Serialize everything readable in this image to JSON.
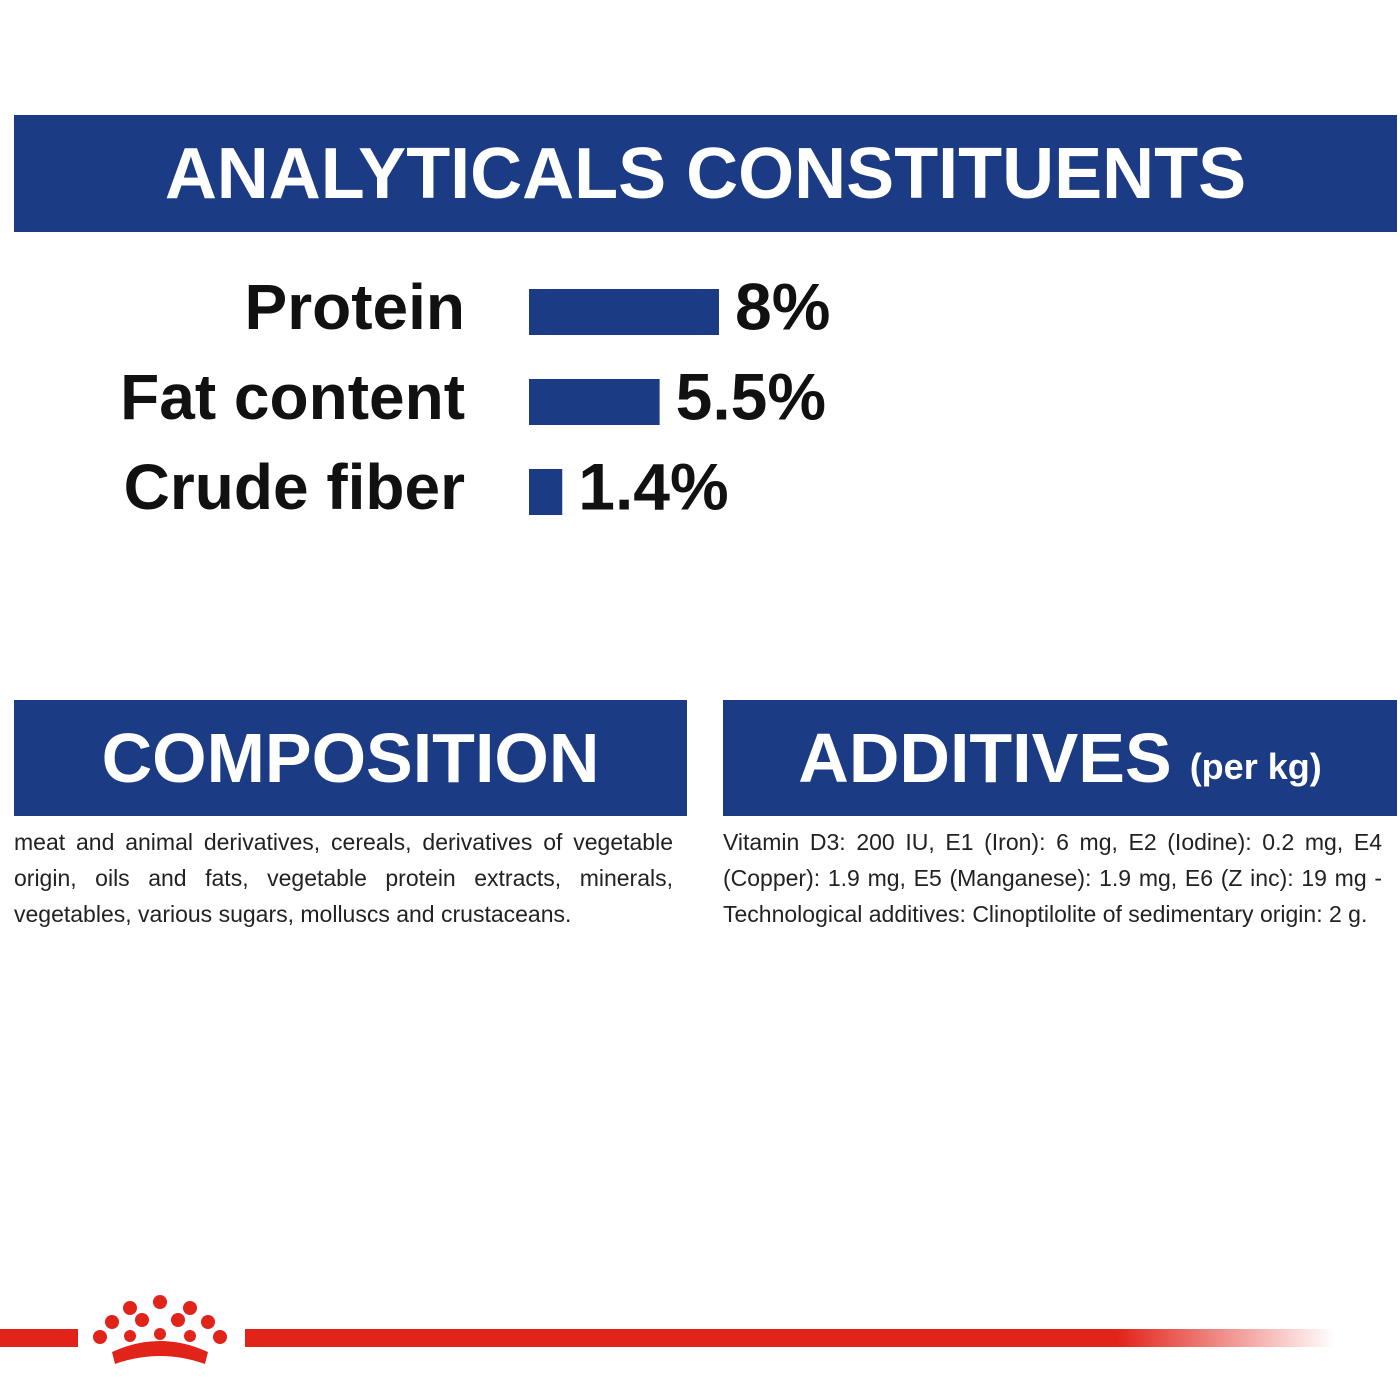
{
  "chart_data": {
    "type": "bar",
    "title": "ANALYTICALS CONSTITUENTS",
    "categories": [
      "Protein",
      "Fat content",
      "Crude fiber"
    ],
    "values": [
      8,
      5.5,
      1.4
    ],
    "value_labels": [
      "8%",
      "5.5%",
      "1.4%"
    ],
    "color": "#1b3c84"
  },
  "composition": {
    "title": "COMPOSITION",
    "text": "meat and animal derivatives, cereals, derivatives of vegetable origin, oils and fats, vegetable protein extracts, minerals, vegetables, various sugars, molluscs and crustaceans."
  },
  "additives": {
    "title": "ADDITIVES",
    "unit": "(per kg)",
    "text": "Vitamin D3: 200 IU, E1 (Iron): 6 mg, E2 (Iodine): 0.2 mg, E4 (Copper): 1.9 mg, E5 (Manganese): 1.9 mg, E6 (Z inc): 19 mg - Technological additives: Clinoptilolite of sedimentary origin: 2 g."
  }
}
